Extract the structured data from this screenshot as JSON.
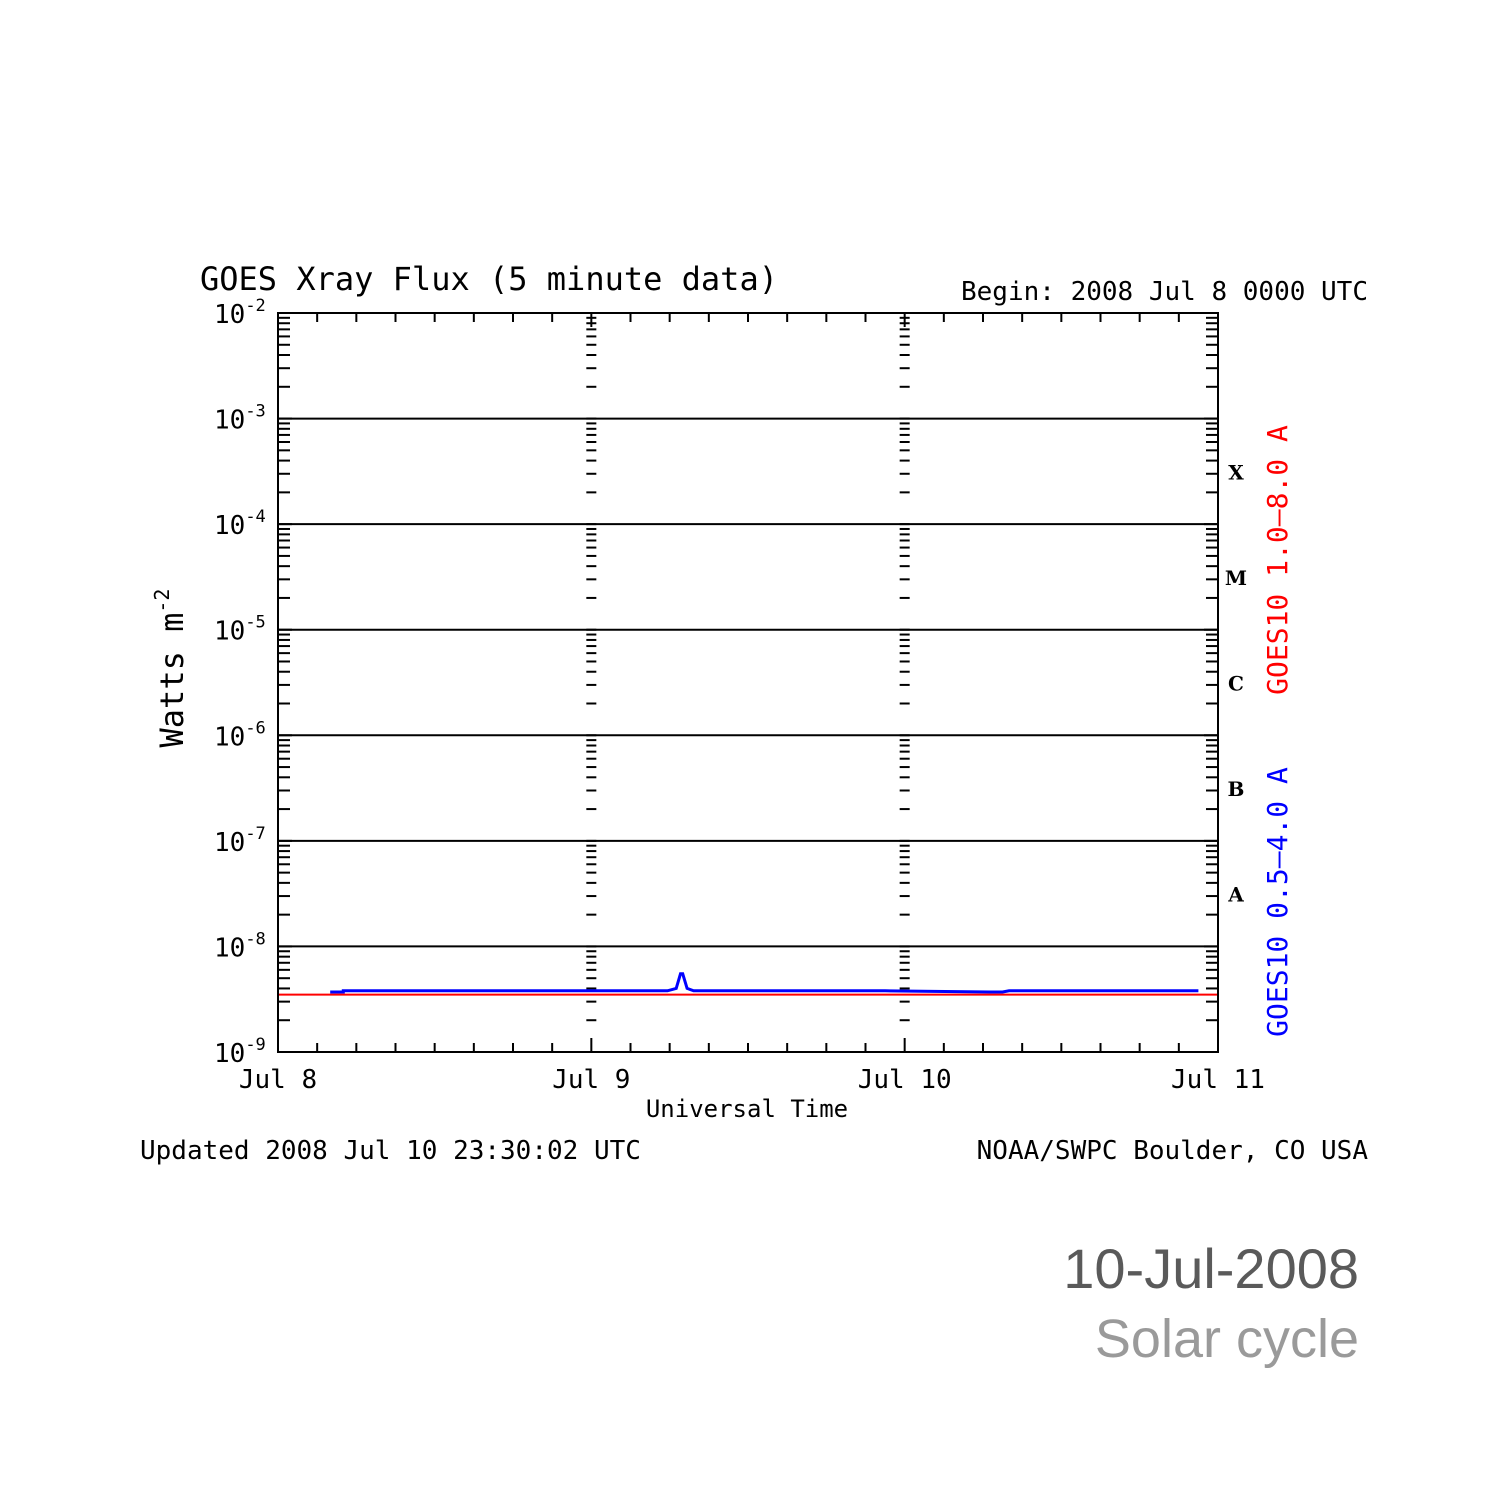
{
  "chart_data": {
    "type": "line",
    "title": "GOES Xray Flux (5 minute data)",
    "begin_label": "Begin:  2008 Jul 8 0000 UTC",
    "xlabel": "Universal Time",
    "ylabel": "Watts m",
    "ylabel_exp": "-2",
    "y_scale": "log",
    "ylim": [
      1e-09,
      0.01
    ],
    "xlim": [
      "2008-07-08T00:00Z",
      "2008-07-11T00:00Z"
    ],
    "x_tick_labels": [
      "Jul 8",
      "Jul 9",
      "Jul 10",
      "Jul 11"
    ],
    "y_tick_labels": [
      {
        "base": "10",
        "exp": "-9"
      },
      {
        "base": "10",
        "exp": "-8"
      },
      {
        "base": "10",
        "exp": "-7"
      },
      {
        "base": "10",
        "exp": "-6"
      },
      {
        "base": "10",
        "exp": "-5"
      },
      {
        "base": "10",
        "exp": "-4"
      },
      {
        "base": "10",
        "exp": "-3"
      },
      {
        "base": "10",
        "exp": "-2"
      }
    ],
    "flare_classes": [
      {
        "label": "A",
        "value": 1e-08
      },
      {
        "label": "B",
        "value": 1e-07
      },
      {
        "label": "C",
        "value": 1e-06
      },
      {
        "label": "M",
        "value": 1e-05
      },
      {
        "label": "X",
        "value": 0.0001
      }
    ],
    "grid_lines": [
      1e-08,
      1e-07,
      1e-06,
      1e-05,
      0.0001,
      0.001
    ],
    "series": [
      {
        "name": "GOES10 1.0–8.0 A",
        "color": "#ff0000",
        "x": [
          "2008-07-08T00:00Z",
          "2008-07-11T00:00Z"
        ],
        "y": [
          3.5e-09,
          3.5e-09
        ]
      },
      {
        "name": "GOES10 0.5–4.0 A",
        "color": "#0000ff",
        "x": [
          "2008-07-08T04:00Z",
          "2008-07-08T05:00Z",
          "2008-07-08T05:00Z",
          "2008-07-08T22:30Z",
          "2008-07-09T05:50Z",
          "2008-07-09T06:30Z",
          "2008-07-09T06:50Z",
          "2008-07-09T07:00Z",
          "2008-07-09T07:20Z",
          "2008-07-09T07:50Z",
          "2008-07-09T22:30Z",
          "2008-07-10T06:30Z",
          "2008-07-10T07:30Z",
          "2008-07-10T08:00Z",
          "2008-07-10T08:00Z",
          "2008-07-10T22:30Z"
        ],
        "y": [
          3.7e-09,
          3.7e-09,
          3.8e-09,
          3.8e-09,
          3.8e-09,
          4e-09,
          5.5e-09,
          5.5e-09,
          4e-09,
          3.8e-09,
          3.8e-09,
          3.7e-09,
          3.7e-09,
          3.8e-09,
          3.8e-09,
          3.8e-09
        ]
      }
    ],
    "footer_left": "Updated 2008 Jul 10 23:30:02 UTC",
    "footer_right": "NOAA/SWPC Boulder, CO USA"
  },
  "caption": {
    "date": "10-Jul-2008",
    "subtitle": "Solar cycle"
  }
}
